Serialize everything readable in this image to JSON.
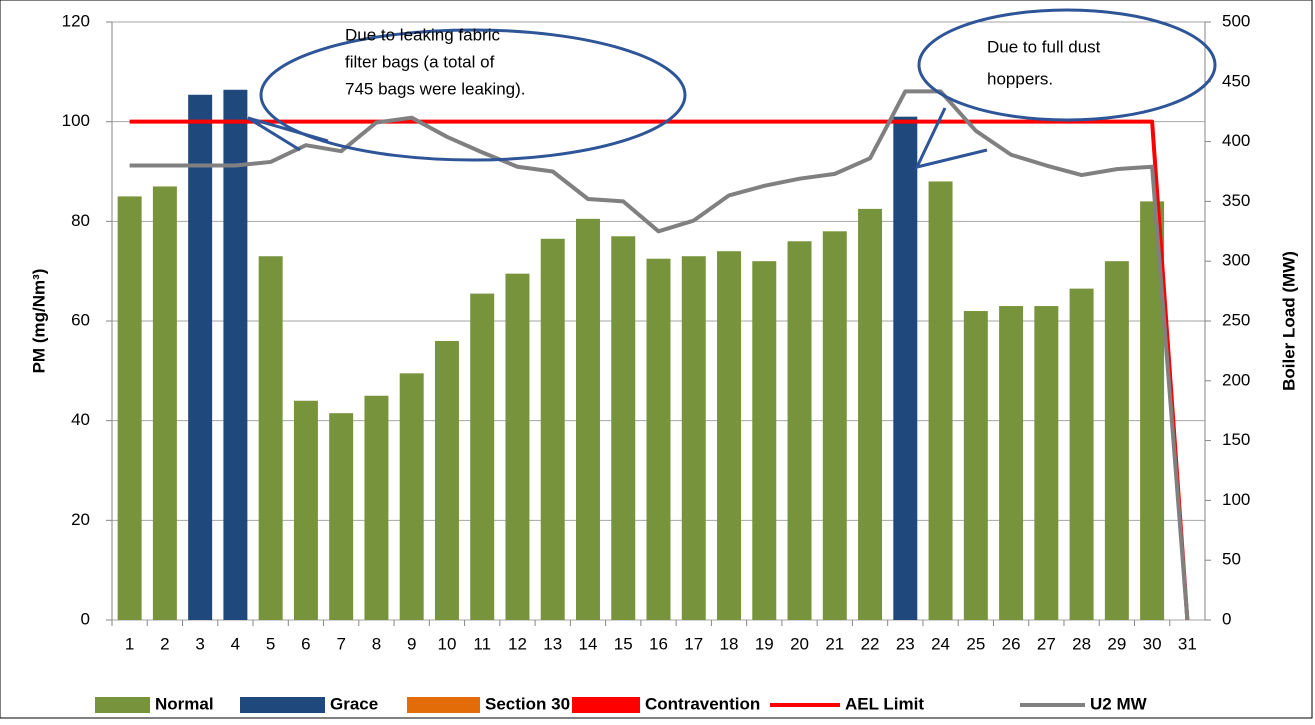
{
  "chart_data": {
    "type": "bar",
    "categories": [
      "1",
      "2",
      "3",
      "4",
      "5",
      "6",
      "7",
      "8",
      "9",
      "10",
      "11",
      "12",
      "13",
      "14",
      "15",
      "16",
      "17",
      "18",
      "19",
      "20",
      "21",
      "22",
      "23",
      "24",
      "25",
      "26",
      "27",
      "28",
      "29",
      "30",
      "31"
    ],
    "ylabel": "PM (mg/Nm³)",
    "y2label": "Boiler Load (MW)",
    "ylim": [
      0,
      120
    ],
    "yticks": [
      0,
      20,
      40,
      60,
      80,
      100,
      120
    ],
    "y2lim": [
      0,
      500
    ],
    "y2ticks": [
      0,
      50,
      100,
      150,
      200,
      250,
      300,
      350,
      400,
      450,
      500
    ],
    "grid": true,
    "legend": "bottom",
    "series": [
      {
        "name": "Normal",
        "color": "#77933c",
        "kind": "bar",
        "values": [
          85,
          87,
          null,
          null,
          73,
          44,
          41.5,
          45,
          49.5,
          56,
          65.5,
          69.5,
          76.5,
          80.5,
          77,
          72.5,
          73,
          74,
          72,
          76,
          78,
          82.5,
          null,
          88,
          62,
          63,
          63,
          66.5,
          72,
          84,
          null
        ]
      },
      {
        "name": "Grace",
        "color": "#1f497d",
        "kind": "bar",
        "values": [
          null,
          null,
          105.4,
          106.4,
          null,
          null,
          null,
          null,
          null,
          null,
          null,
          null,
          null,
          null,
          null,
          null,
          null,
          null,
          null,
          null,
          null,
          null,
          101,
          null,
          null,
          null,
          null,
          null,
          null,
          null,
          null
        ]
      },
      {
        "name": "Section 30",
        "color": "#e36c09",
        "kind": "bar",
        "values": [
          null,
          null,
          null,
          null,
          null,
          null,
          null,
          null,
          null,
          null,
          null,
          null,
          null,
          null,
          null,
          null,
          null,
          null,
          null,
          null,
          null,
          null,
          null,
          null,
          null,
          null,
          null,
          null,
          null,
          null,
          null
        ]
      },
      {
        "name": "Contravention",
        "color": "#ff0000",
        "kind": "bar",
        "values": [
          null,
          null,
          null,
          null,
          null,
          null,
          null,
          null,
          null,
          null,
          null,
          null,
          null,
          null,
          null,
          null,
          null,
          null,
          null,
          null,
          null,
          null,
          null,
          null,
          null,
          null,
          null,
          null,
          null,
          null,
          null
        ]
      },
      {
        "name": "AEL Limit",
        "color": "#ff0000",
        "kind": "line",
        "values": [
          100,
          100,
          100,
          100,
          100,
          100,
          100,
          100,
          100,
          100,
          100,
          100,
          100,
          100,
          100,
          100,
          100,
          100,
          100,
          100,
          100,
          100,
          100,
          100,
          100,
          100,
          100,
          100,
          100,
          100,
          0
        ]
      },
      {
        "name": "U2 MW",
        "color": "#808080",
        "kind": "line",
        "axis": "y2",
        "values": [
          380,
          380,
          380,
          380,
          383,
          397,
          392,
          416,
          420,
          404,
          391,
          379,
          375,
          352,
          350,
          325,
          334,
          355,
          363,
          369,
          373,
          386,
          442,
          442,
          409,
          389,
          380,
          372,
          377,
          379,
          0
        ]
      }
    ],
    "annotations": [
      [
        "Due to leaking fabric",
        "filter bags (a total of",
        "745 bags were leaking)."
      ],
      [
        "Due to full dust",
        "hoppers."
      ]
    ]
  }
}
